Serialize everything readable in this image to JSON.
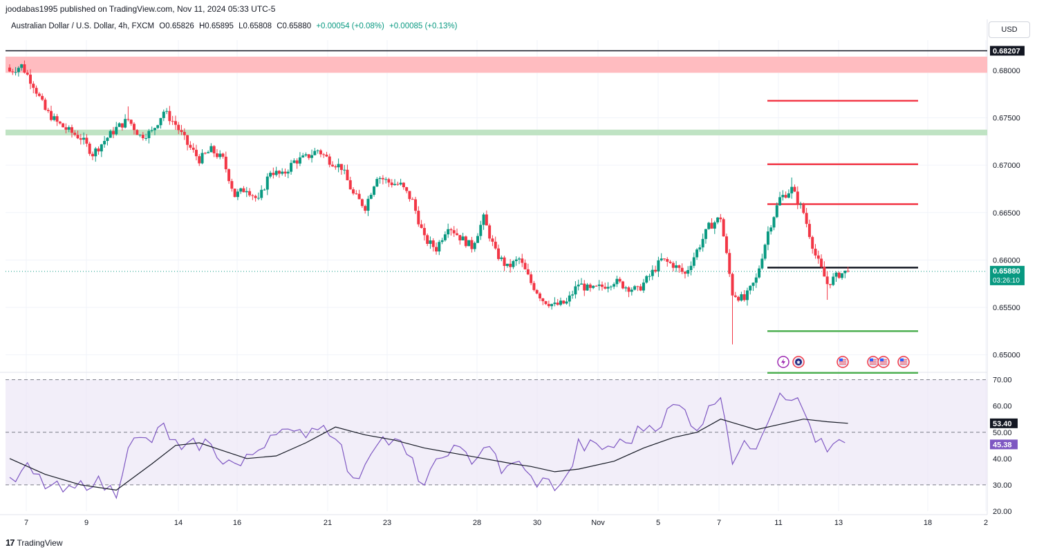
{
  "header": {
    "publisher_line": "joodabas1995 published on TradingView.com, Nov 11, 2024 05:33 UTC-5",
    "symbol": "Australian Dollar / U.S. Dollar, 4h, FXCM",
    "open": "O0.65826",
    "high": "H0.65895",
    "low": "L0.65808",
    "close": "C0.65880",
    "change": "+0.00054 (+0.08%)",
    "change2": "+0.00085 (+0.13%)",
    "currency": "USD"
  },
  "footer": {
    "brand": "TradingView",
    "logo": "17"
  },
  "colors": {
    "up": "#089981",
    "down": "#f23645",
    "rsi": "#7e57c2",
    "rsi_ma": "#131722",
    "resistance_zone": "#ffbcc0",
    "support_zone": "#bfe3c3"
  },
  "chart_data": [
    {
      "type": "candlestick",
      "title": "Australian Dollar / U.S. Dollar, 4h, FXCM",
      "ylim": [
        0.6483,
        0.6832
      ],
      "y_ticks": [
        0.68,
        0.675,
        0.67,
        0.665,
        0.66,
        0.655,
        0.65
      ],
      "y_tick_labels": [
        "0.68000",
        "0.67500",
        "0.67000",
        "0.66500",
        "0.66000",
        "0.65500",
        "0.65000"
      ],
      "x_tick_labels": [
        "7",
        "9",
        "14",
        "16",
        "21",
        "23",
        "28",
        "30",
        "Nov",
        "5",
        "7",
        "11",
        "13",
        "18",
        "2"
      ],
      "price_badges": [
        {
          "label": "0.68207",
          "value": 0.68207
        },
        {
          "label": "0.65880",
          "value": 0.6588,
          "countdown": "03:26:10"
        }
      ],
      "zones": [
        {
          "kind": "resistance",
          "from": 0.67975,
          "to": 0.68145
        },
        {
          "kind": "support",
          "from": 0.67315,
          "to": 0.67375
        }
      ],
      "hlines": [
        {
          "value": 0.68207,
          "color": "#131722"
        },
        {
          "value": 0.6768,
          "color": "#f23645"
        },
        {
          "value": 0.6701,
          "color": "#f23645"
        },
        {
          "value": 0.6659,
          "color": "#f23645"
        },
        {
          "value": 0.6592,
          "color": "#131722"
        },
        {
          "value": 0.6525,
          "color": "#4caf50"
        },
        {
          "value": 0.6481,
          "color": "#4caf50"
        }
      ],
      "current_price": 0.6588,
      "close_path": [
        [
          0,
          0.6799
        ],
        [
          4,
          0.6805
        ],
        [
          8,
          0.6785
        ],
        [
          12,
          0.6758
        ],
        [
          16,
          0.6745
        ],
        [
          20,
          0.6736
        ],
        [
          24,
          0.6729
        ],
        [
          28,
          0.6712
        ],
        [
          32,
          0.6726
        ],
        [
          36,
          0.6739
        ],
        [
          40,
          0.6748
        ],
        [
          44,
          0.6731
        ],
        [
          48,
          0.6735
        ],
        [
          52,
          0.6757
        ],
        [
          56,
          0.6743
        ],
        [
          60,
          0.6722
        ],
        [
          64,
          0.6706
        ],
        [
          68,
          0.6716
        ],
        [
          72,
          0.6706
        ],
        [
          76,
          0.6668
        ],
        [
          80,
          0.6676
        ],
        [
          84,
          0.6662
        ],
        [
          88,
          0.6694
        ],
        [
          92,
          0.6689
        ],
        [
          96,
          0.6704
        ],
        [
          100,
          0.6708
        ],
        [
          104,
          0.6716
        ],
        [
          108,
          0.6705
        ],
        [
          112,
          0.6698
        ],
        [
          116,
          0.6669
        ],
        [
          120,
          0.6656
        ],
        [
          124,
          0.6689
        ],
        [
          128,
          0.6682
        ],
        [
          132,
          0.6679
        ],
        [
          136,
          0.6662
        ],
        [
          140,
          0.6622
        ],
        [
          144,
          0.6612
        ],
        [
          148,
          0.6637
        ],
        [
          152,
          0.6624
        ],
        [
          156,
          0.6614
        ],
        [
          160,
          0.6644
        ],
        [
          164,
          0.6608
        ],
        [
          168,
          0.6592
        ],
        [
          172,
          0.6601
        ],
        [
          176,
          0.6576
        ],
        [
          180,
          0.6558
        ],
        [
          184,
          0.6552
        ],
        [
          188,
          0.6555
        ],
        [
          192,
          0.6575
        ],
        [
          196,
          0.6568
        ],
        [
          200,
          0.6572
        ],
        [
          204,
          0.6578
        ],
        [
          208,
          0.6572
        ],
        [
          212,
          0.6568
        ],
        [
          216,
          0.6583
        ],
        [
          220,
          0.66
        ],
        [
          224,
          0.6595
        ],
        [
          228,
          0.6585
        ],
        [
          232,
          0.661
        ],
        [
          236,
          0.6635
        ],
        [
          240,
          0.6645
        ],
        [
          244,
          0.6565
        ],
        [
          248,
          0.6558
        ],
        [
          252,
          0.658
        ],
        [
          256,
          0.663
        ],
        [
          260,
          0.6665
        ],
        [
          264,
          0.6675
        ],
        [
          268,
          0.665
        ],
        [
          272,
          0.6605
        ],
        [
          276,
          0.6575
        ],
        [
          280,
          0.6585
        ],
        [
          283,
          0.6588
        ]
      ],
      "pivots": [
        {
          "label": "H",
          "t": 40,
          "value": 0.6762
        },
        {
          "label": "L",
          "t": 244,
          "value": 0.6511
        },
        {
          "label": "H",
          "t": 264,
          "value": 0.6687
        },
        {
          "label": "L",
          "t": 276,
          "value": 0.6558
        }
      ],
      "event_icons": [
        {
          "kind": "lightning-icon",
          "date": "Nov 11"
        },
        {
          "kind": "au-flag-icon",
          "date": "Nov 11"
        },
        {
          "kind": "us-flag-icon",
          "date": "Nov 13"
        },
        {
          "kind": "us-flag-icon",
          "date": "Nov 14"
        },
        {
          "kind": "us-flag-icon",
          "date": "Nov 14"
        },
        {
          "kind": "us-flag-icon",
          "date": "Nov 15"
        }
      ]
    },
    {
      "type": "line",
      "title": "RSI",
      "ylim": [
        20,
        72
      ],
      "y_ticks": [
        70,
        60,
        50,
        40,
        30,
        20
      ],
      "y_tick_labels": [
        "70.00",
        "60.00",
        "50.00",
        "40.00",
        "30.00",
        "20.00"
      ],
      "band": [
        30,
        70
      ],
      "reference_levels": [
        70,
        50,
        30
      ],
      "badges": [
        {
          "label": "53.40",
          "value": 53.4,
          "color": "#131722"
        },
        {
          "label": "45.38",
          "value": 45.38,
          "color": "#7e57c2"
        }
      ],
      "series": [
        {
          "role": "rsi",
          "points": [
            [
              0,
              30
            ],
            [
              6,
              36
            ],
            [
              12,
              30
            ],
            [
              20,
              27
            ],
            [
              28,
              32
            ],
            [
              36,
              27
            ],
            [
              40,
              46
            ],
            [
              48,
              47
            ],
            [
              52,
              52
            ],
            [
              58,
              42
            ],
            [
              62,
              45
            ],
            [
              66,
              46
            ],
            [
              72,
              40
            ],
            [
              78,
              37
            ],
            [
              84,
              44
            ],
            [
              90,
              52
            ],
            [
              96,
              48
            ],
            [
              104,
              53
            ],
            [
              110,
              50
            ],
            [
              116,
              30
            ],
            [
              124,
              48
            ],
            [
              132,
              45
            ],
            [
              140,
              30
            ],
            [
              148,
              44
            ],
            [
              156,
              40
            ],
            [
              162,
              46
            ],
            [
              166,
              33
            ],
            [
              170,
              40
            ],
            [
              176,
              32
            ],
            [
              184,
              30
            ],
            [
              188,
              32
            ],
            [
              192,
              45
            ],
            [
              200,
              44
            ],
            [
              208,
              46
            ],
            [
              214,
              52
            ],
            [
              220,
              54
            ],
            [
              224,
              60
            ],
            [
              228,
              58
            ],
            [
              232,
              52
            ],
            [
              236,
              58
            ],
            [
              240,
              66
            ],
            [
              244,
              40
            ],
            [
              248,
              44
            ],
            [
              252,
              46
            ],
            [
              256,
              56
            ],
            [
              260,
              66
            ],
            [
              264,
              64
            ],
            [
              268,
              58
            ],
            [
              272,
              48
            ],
            [
              276,
              42
            ],
            [
              280,
              46
            ],
            [
              283,
              46
            ]
          ]
        },
        {
          "role": "rsi-ma",
          "points": [
            [
              0,
              40
            ],
            [
              12,
              34
            ],
            [
              24,
              30
            ],
            [
              36,
              28
            ],
            [
              48,
              38
            ],
            [
              56,
              45
            ],
            [
              64,
              46
            ],
            [
              72,
              43
            ],
            [
              80,
              40
            ],
            [
              90,
              41
            ],
            [
              100,
              46
            ],
            [
              110,
              52
            ],
            [
              120,
              49
            ],
            [
              130,
              47
            ],
            [
              140,
              44
            ],
            [
              150,
              42
            ],
            [
              160,
              40
            ],
            [
              170,
              38
            ],
            [
              176,
              37
            ],
            [
              184,
              35
            ],
            [
              192,
              36
            ],
            [
              204,
              39
            ],
            [
              214,
              44
            ],
            [
              224,
              48
            ],
            [
              232,
              50
            ],
            [
              240,
              55
            ],
            [
              246,
              53
            ],
            [
              252,
              51
            ],
            [
              260,
              53
            ],
            [
              268,
              55
            ],
            [
              276,
              54
            ],
            [
              283,
              53.4
            ]
          ]
        }
      ]
    }
  ]
}
